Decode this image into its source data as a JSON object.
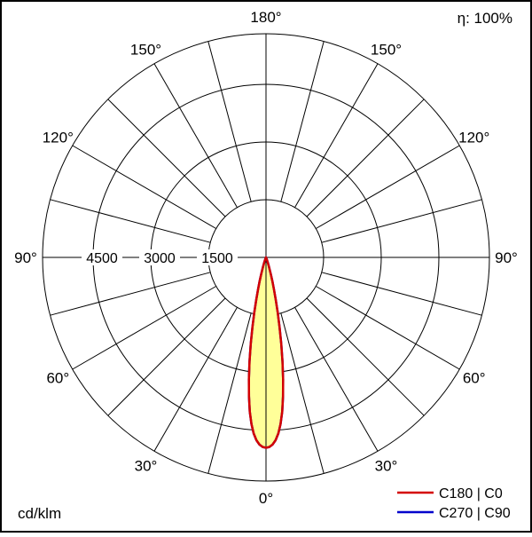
{
  "header": {
    "efficiency": "η: 100%"
  },
  "footer": {
    "unit": "cd/klm"
  },
  "chart_data": {
    "type": "polar",
    "subtype": "luminous-intensity-distribution",
    "unit": "cd/klm",
    "efficiency": "η: 100%",
    "ring_values": [
      1500,
      3000,
      4500
    ],
    "ring_value_step": 1500,
    "angle_grid_step_deg": 15,
    "angle_label_step_deg": 30,
    "angle_labels": [
      {
        "text": "0°",
        "gamma": 0,
        "side": 0
      },
      {
        "text": "30°",
        "gamma": 30,
        "side": -1
      },
      {
        "text": "30°",
        "gamma": 30,
        "side": 1
      },
      {
        "text": "60°",
        "gamma": 60,
        "side": -1
      },
      {
        "text": "60°",
        "gamma": 60,
        "side": 1
      },
      {
        "text": "90°",
        "gamma": 90,
        "side": -1
      },
      {
        "text": "90°",
        "gamma": 90,
        "side": 1
      },
      {
        "text": "120°",
        "gamma": 120,
        "side": -1
      },
      {
        "text": "120°",
        "gamma": 120,
        "side": 1
      },
      {
        "text": "150°",
        "gamma": 150,
        "side": -1
      },
      {
        "text": "150°",
        "gamma": 150,
        "side": 1
      },
      {
        "text": "180°",
        "gamma": 180,
        "side": 0
      }
    ],
    "peak_intensity_cd_per_klm": 4950,
    "beam_fill_color": "#ffff99",
    "series": [
      {
        "name": "C180 | C0",
        "color": "#d40000",
        "points_gamma_cd_per_klm": [
          [
            0,
            4950
          ],
          [
            1,
            4930
          ],
          [
            2,
            4870
          ],
          [
            3,
            4760
          ],
          [
            4,
            4590
          ],
          [
            5,
            4350
          ],
          [
            6,
            4030
          ],
          [
            7,
            3640
          ],
          [
            8,
            3200
          ],
          [
            9,
            2740
          ],
          [
            10,
            2280
          ],
          [
            11,
            1850
          ],
          [
            12,
            1460
          ],
          [
            13,
            1130
          ],
          [
            14,
            860
          ],
          [
            15,
            640
          ],
          [
            16,
            470
          ],
          [
            18,
            250
          ],
          [
            20,
            130
          ],
          [
            22,
            70
          ],
          [
            25,
            30
          ],
          [
            30,
            10
          ],
          [
            35,
            4
          ],
          [
            45,
            0
          ],
          [
            60,
            0
          ],
          [
            90,
            0
          ]
        ]
      },
      {
        "name": "C270 | C90",
        "color": "#0000cc",
        "points_gamma_cd_per_klm": [
          [
            0,
            4950
          ],
          [
            1,
            4930
          ],
          [
            2,
            4870
          ],
          [
            3,
            4760
          ],
          [
            4,
            4590
          ],
          [
            5,
            4350
          ],
          [
            6,
            4030
          ],
          [
            7,
            3640
          ],
          [
            8,
            3200
          ],
          [
            9,
            2740
          ],
          [
            10,
            2280
          ],
          [
            11,
            1850
          ],
          [
            12,
            1460
          ],
          [
            13,
            1130
          ],
          [
            14,
            860
          ],
          [
            15,
            640
          ],
          [
            16,
            470
          ],
          [
            18,
            250
          ],
          [
            20,
            130
          ],
          [
            22,
            70
          ],
          [
            25,
            30
          ],
          [
            30,
            10
          ],
          [
            35,
            4
          ],
          [
            45,
            0
          ],
          [
            60,
            0
          ],
          [
            90,
            0
          ]
        ]
      }
    ]
  }
}
